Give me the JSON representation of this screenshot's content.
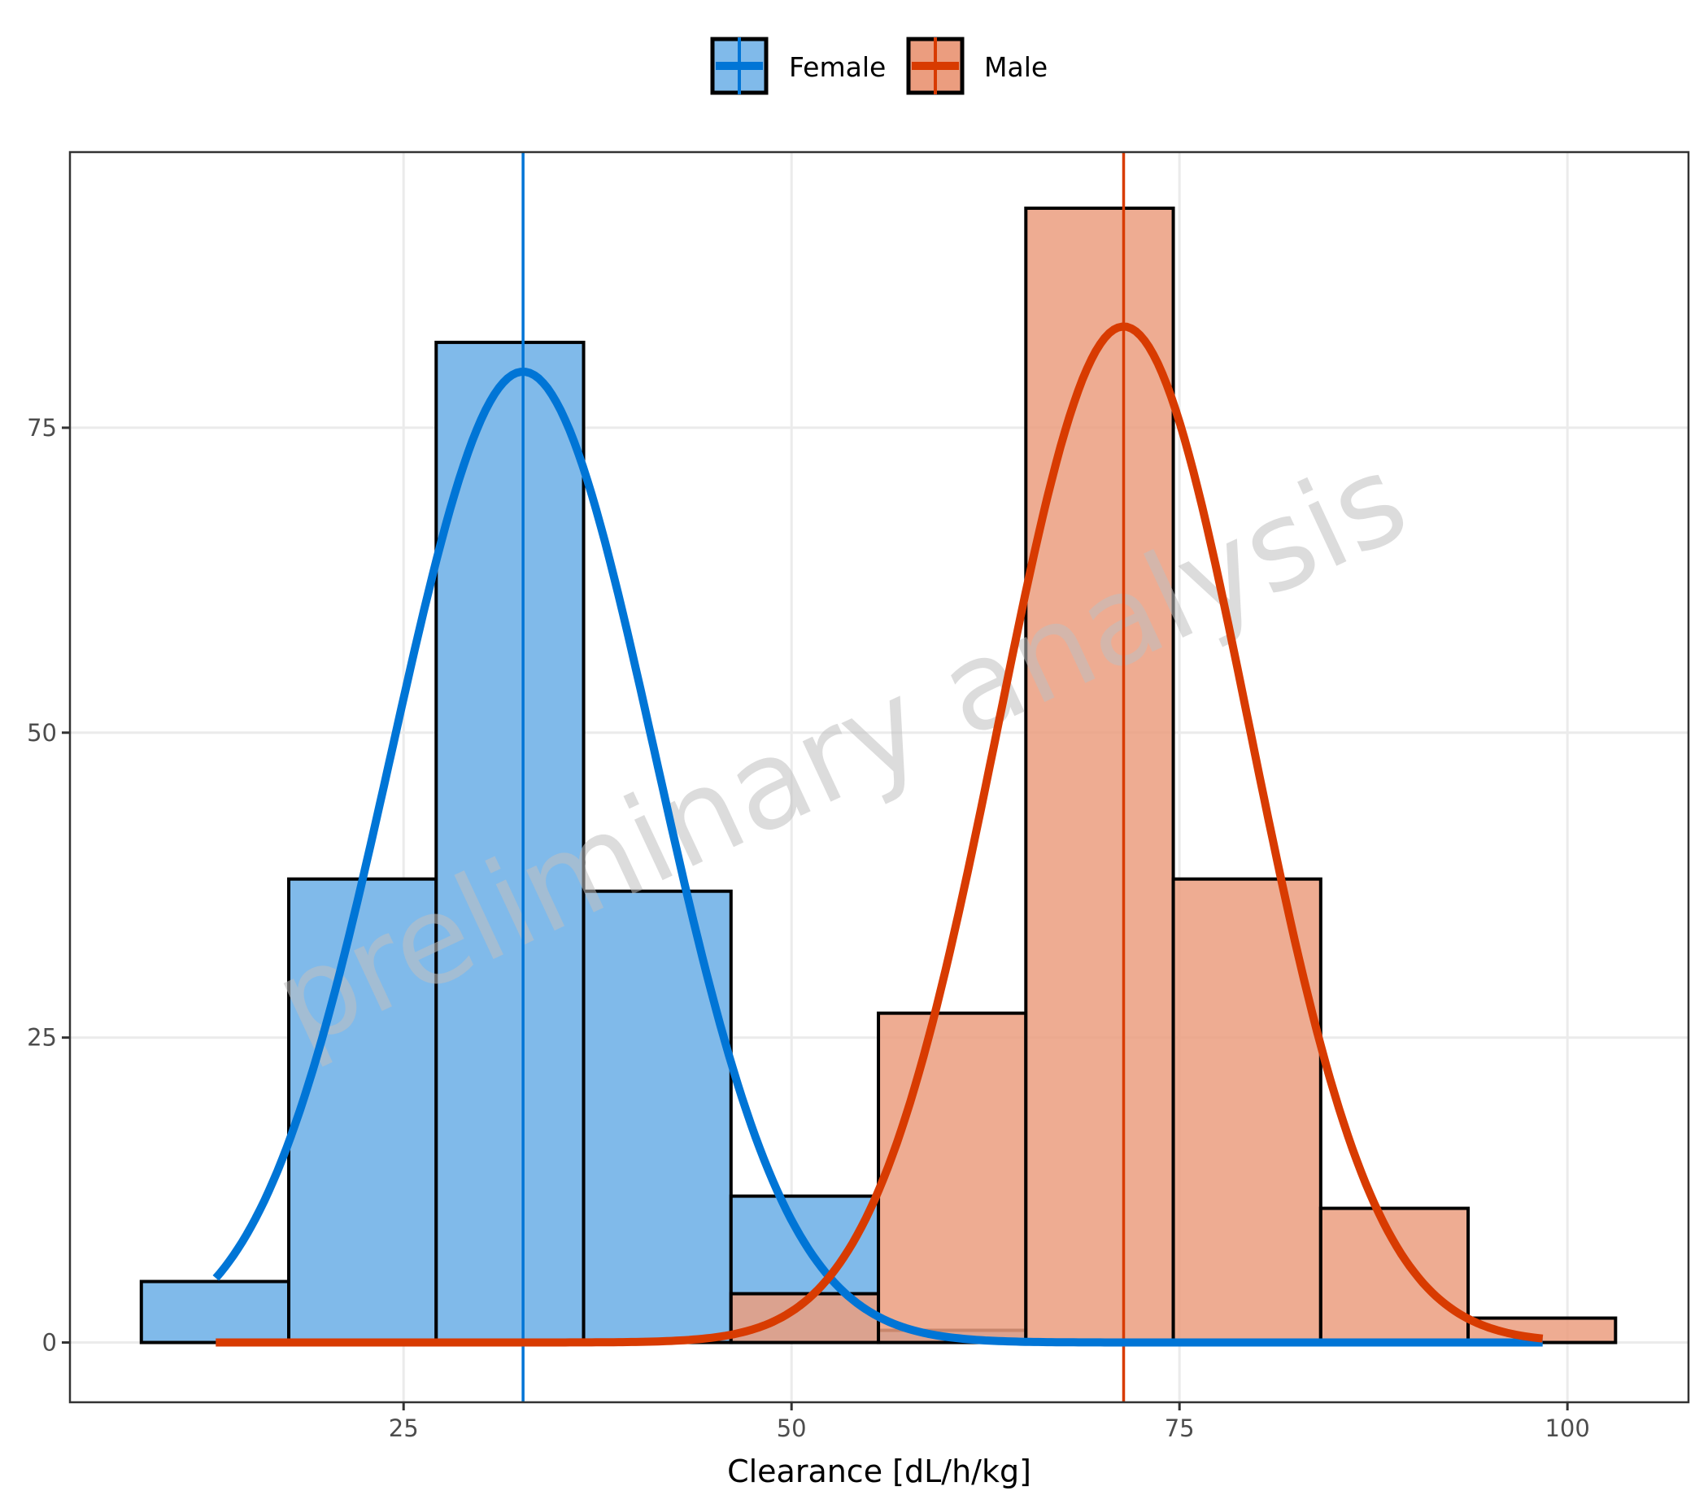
{
  "chart_data": {
    "type": "bar",
    "subtype": "overlaid histogram with normal density curves and mean lines",
    "title": "",
    "xlabel": "Clearance [dL/h/kg]",
    "ylabel": "",
    "xlim": [
      3.5,
      107.8
    ],
    "ylim": [
      -4.9,
      97.6
    ],
    "x_ticks": [
      25,
      50,
      75,
      100
    ],
    "y_ticks": [
      0,
      25,
      50,
      75
    ],
    "grid": true,
    "legend_position": "top",
    "bin_edges": [
      8.1,
      17.6,
      27.1,
      36.6,
      46.1,
      55.6,
      65.1,
      74.6,
      84.1,
      93.6,
      103.1
    ],
    "series": [
      {
        "name": "Female",
        "fill_color": "#80baea",
        "line_color": "#0075d6",
        "counts": [
          5,
          38,
          82,
          37,
          12,
          1,
          0,
          0,
          0,
          0
        ],
        "mean": 32.7,
        "curve": {
          "type": "normal",
          "mean": 32.7,
          "sd": 8.5,
          "peak": 79.6,
          "x_range": [
            12.9,
            98.4
          ]
        }
      },
      {
        "name": "Male",
        "fill_color": "#eb9d7f",
        "line_color": "#d83b01",
        "counts": [
          0,
          0,
          0,
          0,
          4,
          27,
          93,
          38,
          11,
          2
        ],
        "mean": 71.4,
        "curve": {
          "type": "normal",
          "mean": 71.4,
          "sd": 8.1,
          "peak": 83.3,
          "x_range": [
            12.9,
            98.4
          ]
        }
      }
    ],
    "annotations": [
      {
        "type": "watermark",
        "text": "preliminary analysis",
        "rotation": -25
      }
    ]
  },
  "legend": {
    "items": [
      {
        "label": "Female"
      },
      {
        "label": "Male"
      }
    ]
  },
  "axes": {
    "x_title": "Clearance [dL/h/kg]",
    "x_tick_labels": [
      "25",
      "50",
      "75",
      "100"
    ],
    "y_tick_labels": [
      "0",
      "25",
      "50",
      "75"
    ]
  },
  "watermark": {
    "text": "preliminary analysis"
  }
}
